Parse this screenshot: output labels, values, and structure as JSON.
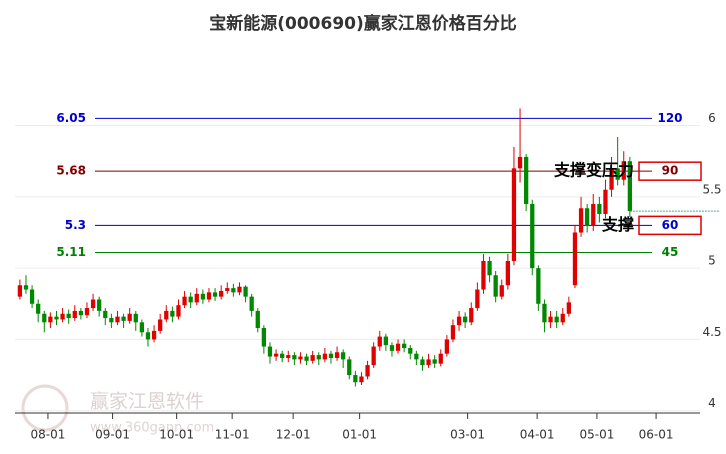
{
  "chart_data": {
    "type": "candlestick",
    "title": "宝新能源(000690)赢家江恩价格百分比",
    "watermark": "赢家江恩软件",
    "watermark_url": "www.360gann.com",
    "up_color": "#e00000",
    "down_color": "#008800",
    "candle_fields": [
      "open",
      "close",
      "high",
      "low"
    ],
    "candles": [
      [
        4.8,
        4.88,
        4.92,
        4.78
      ],
      [
        4.88,
        4.85,
        4.95,
        4.82
      ],
      [
        4.85,
        4.75,
        4.88,
        4.72
      ],
      [
        4.75,
        4.68,
        4.78,
        4.62
      ],
      [
        4.68,
        4.62,
        4.7,
        4.55
      ],
      [
        4.62,
        4.66,
        4.69,
        4.58
      ],
      [
        4.66,
        4.64,
        4.7,
        4.6
      ],
      [
        4.64,
        4.68,
        4.72,
        4.62
      ],
      [
        4.68,
        4.65,
        4.71,
        4.61
      ],
      [
        4.65,
        4.7,
        4.74,
        4.63
      ],
      [
        4.7,
        4.67,
        4.72,
        4.64
      ],
      [
        4.67,
        4.72,
        4.76,
        4.65
      ],
      [
        4.72,
        4.78,
        4.82,
        4.7
      ],
      [
        4.78,
        4.7,
        4.8,
        4.66
      ],
      [
        4.7,
        4.65,
        4.72,
        4.6
      ],
      [
        4.65,
        4.62,
        4.68,
        4.58
      ],
      [
        4.62,
        4.66,
        4.7,
        4.6
      ],
      [
        4.66,
        4.63,
        4.68,
        4.58
      ],
      [
        4.63,
        4.68,
        4.72,
        4.61
      ],
      [
        4.68,
        4.62,
        4.7,
        4.56
      ],
      [
        4.62,
        4.55,
        4.64,
        4.52
      ],
      [
        4.55,
        4.5,
        4.58,
        4.45
      ],
      [
        4.5,
        4.56,
        4.6,
        4.48
      ],
      [
        4.56,
        4.64,
        4.68,
        4.54
      ],
      [
        4.64,
        4.7,
        4.74,
        4.62
      ],
      [
        4.7,
        4.66,
        4.73,
        4.62
      ],
      [
        4.66,
        4.74,
        4.78,
        4.64
      ],
      [
        4.74,
        4.8,
        4.84,
        4.72
      ],
      [
        4.8,
        4.76,
        4.83,
        4.72
      ],
      [
        4.76,
        4.82,
        4.86,
        4.74
      ],
      [
        4.82,
        4.78,
        4.85,
        4.75
      ],
      [
        4.78,
        4.83,
        4.86,
        4.76
      ],
      [
        4.83,
        4.8,
        4.86,
        4.77
      ],
      [
        4.8,
        4.84,
        4.88,
        4.78
      ],
      [
        4.84,
        4.86,
        4.9,
        4.82
      ],
      [
        4.86,
        4.83,
        4.89,
        4.8
      ],
      [
        4.83,
        4.87,
        4.9,
        4.81
      ],
      [
        4.87,
        4.8,
        4.88,
        4.76
      ],
      [
        4.8,
        4.7,
        4.82,
        4.66
      ],
      [
        4.7,
        4.58,
        4.72,
        4.55
      ],
      [
        4.58,
        4.45,
        4.6,
        4.4
      ],
      [
        4.45,
        4.38,
        4.48,
        4.33
      ],
      [
        4.38,
        4.4,
        4.43,
        4.35
      ],
      [
        4.4,
        4.37,
        4.42,
        4.34
      ],
      [
        4.37,
        4.39,
        4.42,
        4.34
      ],
      [
        4.39,
        4.36,
        4.41,
        4.32
      ],
      [
        4.36,
        4.38,
        4.41,
        4.33
      ],
      [
        4.38,
        4.35,
        4.4,
        4.32
      ],
      [
        4.35,
        4.39,
        4.42,
        4.33
      ],
      [
        4.39,
        4.36,
        4.41,
        4.32
      ],
      [
        4.36,
        4.4,
        4.44,
        4.34
      ],
      [
        4.4,
        4.37,
        4.42,
        4.33
      ],
      [
        4.37,
        4.41,
        4.45,
        4.35
      ],
      [
        4.41,
        4.36,
        4.43,
        4.3
      ],
      [
        4.36,
        4.25,
        4.38,
        4.22
      ],
      [
        4.25,
        4.2,
        4.28,
        4.17
      ],
      [
        4.2,
        4.24,
        4.27,
        4.18
      ],
      [
        4.24,
        4.32,
        4.35,
        4.22
      ],
      [
        4.32,
        4.45,
        4.48,
        4.3
      ],
      [
        4.45,
        4.52,
        4.56,
        4.42
      ],
      [
        4.52,
        4.46,
        4.54,
        4.42
      ],
      [
        4.46,
        4.42,
        4.48,
        4.38
      ],
      [
        4.42,
        4.47,
        4.5,
        4.4
      ],
      [
        4.47,
        4.44,
        4.5,
        4.41
      ],
      [
        4.44,
        4.4,
        4.46,
        4.36
      ],
      [
        4.4,
        4.36,
        4.42,
        4.32
      ],
      [
        4.36,
        4.32,
        4.38,
        4.28
      ],
      [
        4.32,
        4.36,
        4.4,
        4.3
      ],
      [
        4.36,
        4.33,
        4.39,
        4.3
      ],
      [
        4.33,
        4.4,
        4.43,
        4.31
      ],
      [
        4.4,
        4.5,
        4.53,
        4.38
      ],
      [
        4.5,
        4.6,
        4.64,
        4.48
      ],
      [
        4.6,
        4.66,
        4.7,
        4.56
      ],
      [
        4.66,
        4.62,
        4.69,
        4.58
      ],
      [
        4.62,
        4.72,
        4.76,
        4.6
      ],
      [
        4.72,
        4.85,
        4.9,
        4.7
      ],
      [
        4.85,
        5.05,
        5.1,
        4.82
      ],
      [
        5.05,
        4.95,
        5.08,
        4.9
      ],
      [
        4.95,
        4.8,
        4.98,
        4.76
      ],
      [
        4.8,
        4.88,
        4.92,
        4.78
      ],
      [
        4.88,
        5.05,
        5.1,
        4.85
      ],
      [
        5.05,
        5.7,
        5.85,
        5.02
      ],
      [
        5.7,
        5.78,
        6.12,
        5.6
      ],
      [
        5.78,
        5.45,
        5.8,
        5.4
      ],
      [
        5.45,
        5.0,
        5.48,
        4.95
      ],
      [
        5.0,
        4.75,
        5.02,
        4.7
      ],
      [
        4.75,
        4.62,
        4.78,
        4.55
      ],
      [
        4.62,
        4.66,
        4.7,
        4.58
      ],
      [
        4.66,
        4.62,
        4.7,
        4.58
      ],
      [
        4.62,
        4.68,
        4.72,
        4.6
      ],
      [
        4.68,
        4.76,
        4.8,
        4.66
      ],
      [
        4.88,
        5.25,
        5.3,
        4.86
      ],
      [
        5.25,
        5.42,
        5.5,
        5.22
      ],
      [
        5.42,
        5.3,
        5.45,
        5.25
      ],
      [
        5.3,
        5.45,
        5.52,
        5.26
      ],
      [
        5.45,
        5.38,
        5.5,
        5.32
      ],
      [
        5.38,
        5.55,
        5.62,
        5.35
      ],
      [
        5.55,
        5.7,
        5.78,
        5.5
      ],
      [
        5.7,
        5.62,
        5.92,
        5.58
      ],
      [
        5.62,
        5.75,
        5.82,
        5.58
      ],
      [
        5.75,
        5.4,
        5.78,
        5.36
      ]
    ],
    "xlim": [
      -0.8,
      111.5
    ],
    "xticks": [
      {
        "value": 4.6,
        "label": "08-01"
      },
      {
        "value": 15.2,
        "label": "09-01"
      },
      {
        "value": 25.7,
        "label": "10-01"
      },
      {
        "value": 34.8,
        "label": "11-01"
      },
      {
        "value": 44.8,
        "label": "12-01"
      },
      {
        "value": 55.7,
        "label": "01-01"
      },
      {
        "value": 73.4,
        "label": "03-01"
      },
      {
        "value": 84.8,
        "label": "04-01"
      },
      {
        "value": 94.6,
        "label": "05-01"
      },
      {
        "value": 104.3,
        "label": "06-01"
      }
    ],
    "ylim": [
      3.97,
      6.6
    ],
    "yticks": [
      4,
      4.5,
      5,
      5.5,
      6
    ],
    "grid": true,
    "levels": [
      {
        "price": 6.05,
        "label": 120,
        "color": "#0000cc"
      },
      {
        "price": 5.68,
        "label": 90,
        "color": "#800000"
      },
      {
        "price": 5.3,
        "label": 60,
        "color": "#0000cc"
      },
      {
        "price": 5.11,
        "label": 45,
        "color": "#008000"
      }
    ],
    "annotations": [
      {
        "text": "支撑变压力",
        "level": 1
      },
      {
        "text": "支撑",
        "level": 2
      }
    ]
  }
}
